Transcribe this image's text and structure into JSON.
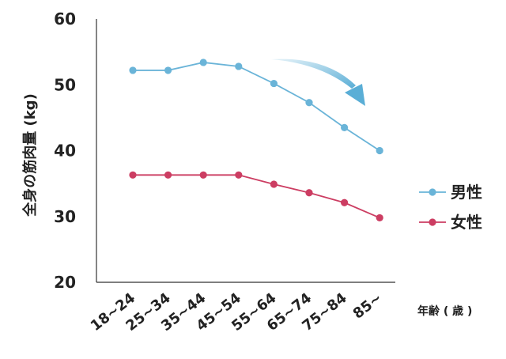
{
  "chart_data": {
    "type": "line",
    "categories": [
      "18~24",
      "25~34",
      "35~44",
      "45~54",
      "55~64",
      "65~74",
      "75~84",
      "85~"
    ],
    "series": [
      {
        "name": "男性",
        "color": "#6ab4d8",
        "values": [
          52.2,
          52.2,
          53.4,
          52.8,
          50.2,
          47.3,
          43.5,
          40.0
        ]
      },
      {
        "name": "女性",
        "color": "#cc3d62",
        "values": [
          36.3,
          36.3,
          36.3,
          36.3,
          34.9,
          33.6,
          32.1,
          29.8
        ]
      }
    ],
    "ylabel": "全身の筋肉量 (kg)",
    "xlabel": "年齢 ( 歳 )",
    "ylim": [
      20,
      60
    ],
    "yticks": [
      20,
      30,
      40,
      50,
      60
    ],
    "grid": false,
    "legend_position": "right",
    "annotation": "downward-trend-arrow",
    "arrow_color": "#5aaed6"
  }
}
